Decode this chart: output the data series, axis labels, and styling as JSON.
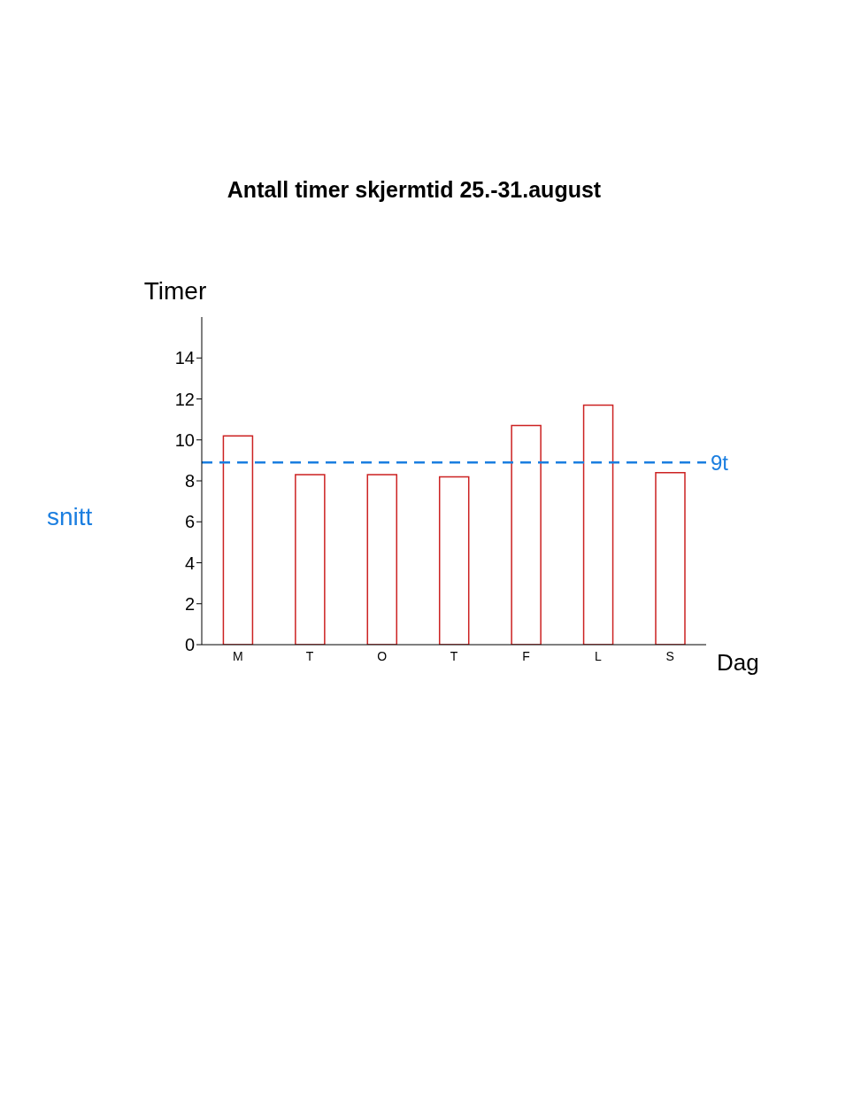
{
  "chart_data": {
    "type": "bar",
    "title": "Antall timer skjermtid  25.-31.august",
    "xlabel": "Dag",
    "ylabel": "Timer",
    "categories": [
      "M",
      "T",
      "O",
      "T",
      "F",
      "L",
      "S"
    ],
    "values": [
      10.2,
      8.3,
      8.3,
      8.2,
      10.7,
      11.7,
      8.4
    ],
    "color": "#cc2222",
    "ylim": [
      0,
      16
    ],
    "yticks": [
      0,
      2,
      4,
      6,
      8,
      10,
      12,
      14
    ],
    "grid": false,
    "ref_lines": [
      {
        "axis": "y",
        "value": 8.9,
        "label": "9t",
        "color": "#1a7ee0",
        "line_style": "dashed"
      }
    ],
    "annotations": [
      "snitt"
    ]
  }
}
